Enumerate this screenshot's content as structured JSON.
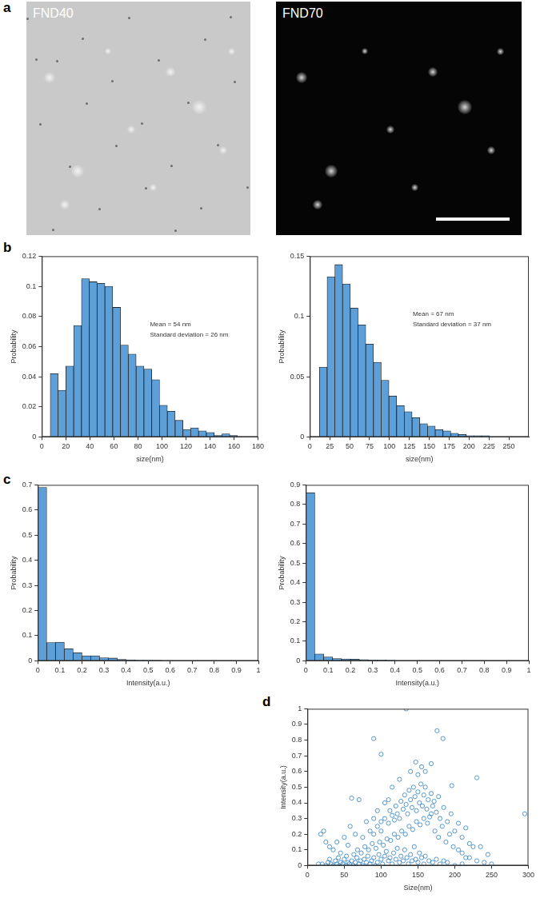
{
  "panel_labels": [
    "a",
    "b",
    "c",
    "d"
  ],
  "images": [
    {
      "label": "FND40"
    },
    {
      "label": "FND70"
    }
  ],
  "chart_data": [
    {
      "type": "histogram",
      "x_label": "size(nm)",
      "y_label": "Probability",
      "annotations": [
        "Mean = 54 nm",
        "Standard deviation = 26 nm"
      ],
      "bins": [
        7,
        13.5,
        20,
        26.5,
        33,
        39.5,
        46,
        52.5,
        59,
        65.5,
        72,
        78.5,
        85,
        91.5,
        98,
        104.5,
        111,
        117.5,
        124,
        130.5,
        137,
        143.5,
        150,
        156.5,
        163
      ],
      "counts": [
        0.042,
        0.031,
        0.047,
        0.074,
        0.105,
        0.103,
        0.102,
        0.1,
        0.086,
        0.061,
        0.055,
        0.047,
        0.045,
        0.038,
        0.021,
        0.017,
        0.011,
        0.005,
        0.006,
        0.004,
        0.003,
        0.001,
        0.002,
        0.001
      ],
      "color": "#5d9fd8",
      "xlim": [
        0,
        180
      ],
      "xticks": [
        0,
        20,
        40,
        60,
        80,
        100,
        120,
        140,
        160,
        180
      ],
      "ylim": [
        0,
        0.12
      ],
      "yticks": [
        0,
        0.02,
        0.04,
        0.06,
        0.08,
        0.1,
        0.12
      ],
      "grid": false
    },
    {
      "type": "histogram",
      "x_label": "size(nm)",
      "y_label": "Probability",
      "annotations": [
        "Mean = 67 nm",
        "Standard deviation = 37 nm"
      ],
      "bins": [
        12,
        21.7,
        31.4,
        41.1,
        50.8,
        60.5,
        70.2,
        79.9,
        89.6,
        99.3,
        109,
        118.7,
        128.4,
        138.1,
        147.8,
        157.5,
        167.2,
        176.9,
        186.6,
        196.3,
        206,
        215.7,
        225.4
      ],
      "counts": [
        0.058,
        0.133,
        0.143,
        0.127,
        0.107,
        0.093,
        0.077,
        0.062,
        0.047,
        0.034,
        0.026,
        0.021,
        0.016,
        0.011,
        0.009,
        0.006,
        0.005,
        0.003,
        0.002,
        0.001,
        0.001,
        0.001
      ],
      "color": "#5d9fd8",
      "xlim": [
        0,
        275
      ],
      "xticks": [
        0,
        25,
        50,
        75,
        100,
        125,
        150,
        175,
        200,
        225,
        250
      ],
      "ylim": [
        0,
        0.15
      ],
      "yticks": [
        0,
        0.05,
        0.1,
        0.15
      ],
      "grid": false
    },
    {
      "type": "histogram",
      "x_label": "Intensity(a.u.)",
      "y_label": "Probability",
      "bins": [
        0,
        0.04,
        0.08,
        0.12,
        0.16,
        0.2,
        0.24,
        0.28,
        0.32,
        0.36,
        0.4,
        0.44,
        0.48,
        0.52,
        0.56,
        0.6
      ],
      "counts": [
        0.69,
        0.073,
        0.074,
        0.048,
        0.032,
        0.02,
        0.02,
        0.012,
        0.011,
        0.006,
        0.004,
        0.003,
        0.002,
        0.002,
        0.001
      ],
      "color": "#5d9fd8",
      "xlim": [
        0,
        1
      ],
      "xticks": [
        0,
        0.1,
        0.2,
        0.3,
        0.4,
        0.5,
        0.6,
        0.7,
        0.8,
        0.9,
        1
      ],
      "ylim": [
        0,
        0.7
      ],
      "yticks": [
        0,
        0.1,
        0.2,
        0.3,
        0.4,
        0.5,
        0.6,
        0.7
      ],
      "grid": false
    },
    {
      "type": "histogram",
      "x_label": "Intensity(a.u.)",
      "y_label": "Probability",
      "bins": [
        0,
        0.04,
        0.08,
        0.12,
        0.16,
        0.2,
        0.24,
        0.28,
        0.32,
        0.36,
        0.4,
        0.44
      ],
      "counts": [
        0.86,
        0.035,
        0.02,
        0.012,
        0.01,
        0.008,
        0.006,
        0.004,
        0.004,
        0.003,
        0.002
      ],
      "color": "#5d9fd8",
      "xlim": [
        0,
        1
      ],
      "xticks": [
        0,
        0.1,
        0.2,
        0.3,
        0.4,
        0.5,
        0.6,
        0.7,
        0.8,
        0.9,
        1
      ],
      "ylim": [
        0,
        0.9
      ],
      "yticks": [
        0,
        0.1,
        0.2,
        0.3,
        0.4,
        0.5,
        0.6,
        0.7,
        0.8,
        0.9
      ],
      "grid": false
    },
    {
      "type": "scatter",
      "x_label": "Size(nm)",
      "y_label": "Intensity(a.u.)",
      "color": "#2f7fc1",
      "marker": "circle",
      "grid": false,
      "xlim": [
        0,
        300
      ],
      "xticks": [
        0,
        50,
        100,
        150,
        200,
        250,
        300
      ],
      "ylim": [
        0,
        1
      ],
      "yticks": [
        0,
        0.1,
        0.2,
        0.3,
        0.4,
        0.5,
        0.6,
        0.7,
        0.8,
        0.9,
        1
      ],
      "x": [
        20,
        25,
        28,
        32,
        35,
        38,
        40,
        43,
        45,
        48,
        50,
        52,
        55,
        57,
        60,
        62,
        65,
        67,
        70,
        72,
        75,
        77,
        80,
        82,
        85,
        87,
        90,
        92,
        95,
        97,
        100,
        102,
        105,
        107,
        110,
        112,
        115,
        117,
        120,
        122,
        125,
        127,
        130,
        132,
        135,
        137,
        140,
        142,
        145,
        147,
        150,
        152,
        155,
        158,
        160,
        165,
        170,
        175,
        180,
        185,
        190,
        200,
        210,
        215,
        15,
        30,
        42,
        53,
        63,
        68,
        73,
        78,
        83,
        88,
        93,
        98,
        103,
        108,
        113,
        118,
        123,
        128,
        133,
        138,
        143,
        148,
        153,
        158,
        163,
        168,
        173,
        178,
        183,
        188,
        193,
        198,
        90,
        95,
        100,
        105,
        110,
        112,
        115,
        118,
        120,
        122,
        125,
        127,
        130,
        132,
        134,
        136,
        138,
        140,
        142,
        144,
        146,
        148,
        150,
        152,
        154,
        156,
        158,
        160,
        162,
        164,
        166,
        168,
        170,
        172,
        175,
        178,
        180,
        185,
        190,
        195,
        200,
        205,
        210,
        215,
        220,
        225,
        18,
        22,
        25,
        30,
        35,
        40,
        45,
        50,
        55,
        58,
        60,
        65,
        70,
        75,
        80,
        85,
        90,
        95,
        100,
        105,
        110,
        115,
        134,
        90,
        176,
        184,
        100,
        147,
        155,
        168,
        160,
        150,
        230,
        295,
        196,
        125,
        140,
        205,
        210,
        220,
        230,
        240,
        250,
        235,
        245
      ],
      "values": [
        0.01,
        0,
        0.02,
        0.01,
        0,
        0.03,
        0.01,
        0,
        0.02,
        0.01,
        0.04,
        0,
        0.02,
        0.01,
        0.03,
        0,
        0.02,
        0.05,
        0.01,
        0.03,
        0,
        0.04,
        0.02,
        0.06,
        0.01,
        0.03,
        0.05,
        0,
        0.02,
        0.07,
        0.04,
        0.01,
        0.06,
        0.09,
        0.03,
        0.05,
        0.01,
        0.08,
        0.04,
        0.11,
        0.02,
        0.06,
        0.03,
        0.1,
        0.05,
        0.01,
        0.07,
        0.03,
        0.12,
        0.04,
        0.02,
        0.08,
        0.05,
        0.01,
        0.06,
        0.03,
        0.02,
        0.04,
        0.01,
        0.03,
        0.02,
        0,
        0.01,
        0.05,
        0.01,
        0.04,
        0.05,
        0.06,
        0.07,
        0.1,
        0.08,
        0.12,
        0.1,
        0.14,
        0.11,
        0.15,
        0.13,
        0.17,
        0.16,
        0.2,
        0.18,
        0.22,
        0.2,
        0.25,
        0.23,
        0.28,
        0.26,
        0.3,
        0.27,
        0.33,
        0.22,
        0.18,
        0.25,
        0.15,
        0.2,
        0.12,
        0.2,
        0.25,
        0.22,
        0.3,
        0.27,
        0.35,
        0.32,
        0.29,
        0.38,
        0.33,
        0.3,
        0.41,
        0.36,
        0.45,
        0.39,
        0.33,
        0.48,
        0.42,
        0.37,
        0.5,
        0.44,
        0.35,
        0.47,
        0.4,
        0.52,
        0.38,
        0.45,
        0.5,
        0.36,
        0.42,
        0.31,
        0.46,
        0.38,
        0.41,
        0.34,
        0.44,
        0.3,
        0.37,
        0.28,
        0.33,
        0.22,
        0.27,
        0.18,
        0.24,
        0.14,
        0.12,
        0.2,
        0.22,
        0.15,
        0.12,
        0.1,
        0.15,
        0.08,
        0.18,
        0.13,
        0.25,
        0.43,
        0.2,
        0.42,
        0.18,
        0.28,
        0.22,
        0.3,
        0.35,
        0.28,
        0.4,
        0.42,
        0.5,
        1,
        0.81,
        0.86,
        0.81,
        0.71,
        0.66,
        0.63,
        0.65,
        0.6,
        0.58,
        0.56,
        0.33,
        0.51,
        0.55,
        0.6,
        0.1,
        0.08,
        0.05,
        0.03,
        0.02,
        0.01,
        0.12,
        0.07
      ]
    }
  ]
}
